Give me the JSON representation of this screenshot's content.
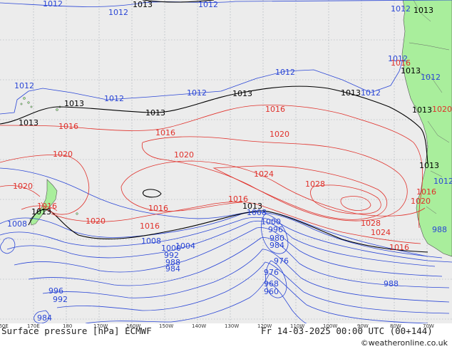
{
  "title": "Surface pressure [hPa] ECMWF",
  "datetime": "Fr 14-03-2025 00:00 UTC (00+144)",
  "credit": "©weatheronline.co.uk",
  "colors": {
    "ocean": "#ececec",
    "land": "#a9ee9c",
    "low_isobar": "#2a46d6",
    "ref_isobar": "#000000",
    "high_isobar": "#e0302a"
  },
  "lon_labels": [
    "160E",
    "170E",
    "180",
    "170W",
    "160W",
    "150W",
    "140W",
    "130W",
    "120W",
    "110W",
    "100W",
    "90W",
    "80W",
    "70W"
  ],
  "isobar_labels": {
    "blue": [
      "1012",
      "1012",
      "1012",
      "1012",
      "1012",
      "1012",
      "1012",
      "1012",
      "1012",
      "1012",
      "1012",
      "1012",
      "1008",
      "1008",
      "1008",
      "1004",
      "1000",
      "1000",
      "996",
      "996",
      "992",
      "992",
      "988",
      "988",
      "984",
      "984",
      "980",
      "976",
      "976",
      "968",
      "960",
      "988",
      "984"
    ],
    "black": [
      "1013",
      "1013",
      "1013",
      "1013",
      "1013",
      "1013",
      "1013",
      "1013",
      "1013",
      "1013",
      "1013",
      "1013"
    ],
    "red": [
      "1016",
      "1016",
      "1016",
      "1016",
      "1016",
      "1016",
      "1016",
      "1016",
      "1016",
      "1020",
      "1020",
      "1020",
      "1020",
      "1020",
      "1020",
      "1024",
      "1024",
      "1028",
      "1028",
      "1016",
      "1020"
    ]
  }
}
